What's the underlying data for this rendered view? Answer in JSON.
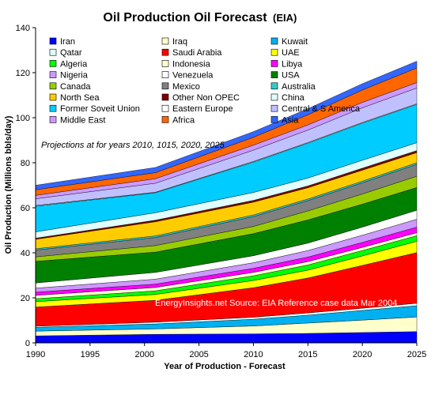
{
  "chart_data": {
    "type": "area",
    "stacked": true,
    "title": "Oil Production Oil Forecast",
    "subtitle": "(EIA)",
    "xlabel": "Year of Production - Forecast",
    "ylabel": "Oil Production (Millions bbls/day)",
    "xlim": [
      1990,
      2025
    ],
    "ylim": [
      0,
      140
    ],
    "xticks": [
      "1990",
      "1995",
      "2000",
      "2005",
      "2010",
      "2015",
      "2020",
      "2025"
    ],
    "yticks": [
      "0",
      "20",
      "40",
      "60",
      "80",
      "100",
      "120",
      "140"
    ],
    "grid": false,
    "legend_position": "top-left, 3 columns",
    "annotation": "Projections at for years 2010, 1015, 2020, 2025",
    "source_note": "EnergyInsights.net  Source: EIA Reference case data Mar 2004",
    "x": [
      1990,
      2001,
      2010,
      2015,
      2020,
      2025
    ],
    "series": [
      {
        "name": "Iran",
        "color": "#0000ff",
        "values": [
          3.1,
          3.8,
          4.0,
          4.2,
          4.6,
          5.0
        ]
      },
      {
        "name": "Iraq",
        "color": "#ffffcc",
        "values": [
          2.1,
          2.4,
          3.5,
          4.6,
          5.5,
          6.5
        ]
      },
      {
        "name": "Kuwait",
        "color": "#00b0f0",
        "values": [
          1.7,
          2.2,
          3.0,
          3.5,
          4.3,
          5.0
        ]
      },
      {
        "name": "Qatar",
        "color": "#e0ffff",
        "values": [
          0.5,
          0.8,
          0.9,
          1.0,
          1.0,
          1.1
        ]
      },
      {
        "name": "Saudi Arabia",
        "color": "#ff0000",
        "values": [
          8.5,
          9.7,
          13.1,
          15.5,
          19.0,
          22.5
        ]
      },
      {
        "name": "UAE",
        "color": "#ffff00",
        "values": [
          2.4,
          2.6,
          3.2,
          3.5,
          4.2,
          5.0
        ]
      },
      {
        "name": "Algeria",
        "color": "#00ff00",
        "values": [
          1.3,
          1.6,
          2.1,
          2.3,
          2.4,
          2.5
        ]
      },
      {
        "name": "Indonesia",
        "color": "#ffffcc",
        "values": [
          1.5,
          1.5,
          1.5,
          1.5,
          1.4,
          1.3
        ]
      },
      {
        "name": "Libya",
        "color": "#ff00ff",
        "values": [
          1.4,
          1.5,
          1.8,
          2.0,
          2.2,
          2.5
        ]
      },
      {
        "name": "Nigeria",
        "color": "#cc99ff",
        "values": [
          1.8,
          2.2,
          2.5,
          2.9,
          3.2,
          3.5
        ]
      },
      {
        "name": "Venezuela",
        "color": "#ffffff",
        "values": [
          2.3,
          3.0,
          3.1,
          3.3,
          3.6,
          4.0
        ]
      },
      {
        "name": "USA",
        "color": "#008000",
        "values": [
          9.6,
          9.0,
          9.8,
          10.3,
          10.2,
          10.1
        ]
      },
      {
        "name": "Canada",
        "color": "#99cc00",
        "values": [
          2.0,
          2.9,
          3.2,
          4.0,
          4.5,
          5.0
        ]
      },
      {
        "name": "Mexico",
        "color": "#808080",
        "values": [
          3.0,
          3.6,
          4.4,
          4.6,
          5.0,
          5.3
        ]
      },
      {
        "name": "Australia",
        "color": "#33cccc",
        "values": [
          0.6,
          0.7,
          0.7,
          0.7,
          0.7,
          0.7
        ]
      },
      {
        "name": "North Sea",
        "color": "#ffcc00",
        "values": [
          4.2,
          6.3,
          5.7,
          5.0,
          4.9,
          4.5
        ]
      },
      {
        "name": "Other Non OPEC",
        "color": "#800000",
        "values": [
          0.5,
          0.7,
          0.8,
          0.8,
          0.9,
          0.9
        ]
      },
      {
        "name": "China",
        "color": "#e0ffff",
        "values": [
          2.8,
          3.3,
          3.5,
          3.5,
          3.5,
          3.5
        ]
      },
      {
        "name": "Former Soveit Union",
        "color": "#00ccff",
        "values": [
          11.4,
          8.9,
          13.5,
          15.5,
          16.5,
          17.0
        ]
      },
      {
        "name": "Eastern Europe",
        "color": "#ffffff",
        "values": [
          0.3,
          0.2,
          0.3,
          0.3,
          0.3,
          0.3
        ]
      },
      {
        "name": "Central & S America",
        "color": "#c0c0ff",
        "values": [
          3.0,
          4.0,
          5.0,
          5.5,
          6.5,
          7.0
        ]
      },
      {
        "name": "Middle East",
        "color": "#cc99ff",
        "values": [
          1.5,
          2.0,
          2.2,
          2.3,
          2.4,
          2.4
        ]
      },
      {
        "name": "Africa",
        "color": "#ff6600",
        "values": [
          2.5,
          2.7,
          3.5,
          4.5,
          5.5,
          6.5
        ]
      },
      {
        "name": "Asia",
        "color": "#3366ff",
        "values": [
          2.0,
          2.3,
          2.5,
          2.7,
          2.8,
          3.0
        ]
      }
    ]
  }
}
